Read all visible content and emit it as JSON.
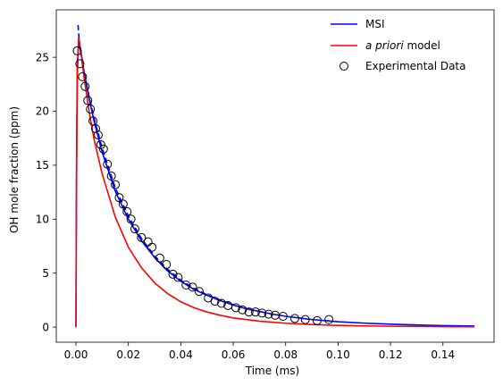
{
  "chart_data": {
    "type": "line",
    "xlabel": "Time (ms)",
    "ylabel": "OH mole fraction (ppm)",
    "xlim": [
      -0.0075,
      0.1595
    ],
    "ylim": [
      -1.4,
      29.4
    ],
    "x_ticks": [
      0.0,
      0.02,
      0.04,
      0.06,
      0.08,
      0.1,
      0.12,
      0.14
    ],
    "x_tick_labels": [
      "0.00",
      "0.02",
      "0.04",
      "0.06",
      "0.08",
      "0.10",
      "0.12",
      "0.14"
    ],
    "y_ticks": [
      0,
      5,
      10,
      15,
      20,
      25
    ],
    "y_tick_labels": [
      "0",
      "5",
      "10",
      "15",
      "20",
      "25"
    ],
    "grid": false,
    "legend_position": "top-right",
    "legend": {
      "msi": "MSI",
      "apriori_italic": "a priori",
      "apriori_rest": " model",
      "experimental": "Experimental Data"
    },
    "colors": {
      "msi": "#0000ff",
      "apriori": "#ff0000",
      "experimental_edge": "#000000",
      "axes": "#000000"
    },
    "series": [
      {
        "name": "MSI",
        "style": "solid",
        "x": [
          0.0,
          0.0002,
          0.0005,
          0.001,
          0.002,
          0.003,
          0.005,
          0.007,
          0.01,
          0.015,
          0.02,
          0.025,
          0.03,
          0.035,
          0.04,
          0.045,
          0.05,
          0.055,
          0.06,
          0.065,
          0.07,
          0.075,
          0.08,
          0.085,
          0.09,
          0.095,
          0.1,
          0.11,
          0.12,
          0.13,
          0.14,
          0.152
        ],
        "y": [
          0.0,
          14.0,
          24.0,
          26.3,
          25.4,
          23.8,
          21.2,
          19.0,
          16.2,
          12.6,
          10.0,
          8.0,
          6.45,
          5.2,
          4.25,
          3.5,
          2.95,
          2.45,
          2.05,
          1.7,
          1.45,
          1.2,
          1.0,
          0.85,
          0.7,
          0.6,
          0.5,
          0.37,
          0.27,
          0.2,
          0.14,
          0.1
        ]
      },
      {
        "name": "MSI",
        "style": "dashed",
        "x": [
          0.0008,
          0.001,
          0.0015,
          0.002,
          0.003,
          0.005,
          0.007,
          0.01,
          0.015,
          0.02,
          0.025,
          0.03,
          0.035,
          0.04,
          0.045,
          0.05,
          0.055,
          0.06
        ],
        "y": [
          28.0,
          27.3,
          26.0,
          25.1,
          23.7,
          21.4,
          19.3,
          16.6,
          12.9,
          10.3,
          8.2,
          6.6,
          5.35,
          4.35,
          3.6,
          3.0,
          2.5,
          2.1
        ]
      },
      {
        "name": "a priori model",
        "style": "solid",
        "x": [
          0.0,
          0.0002,
          0.0005,
          0.001,
          0.0015,
          0.002,
          0.003,
          0.005,
          0.007,
          0.01,
          0.015,
          0.02,
          0.025,
          0.03,
          0.035,
          0.04,
          0.045,
          0.05,
          0.055,
          0.06,
          0.07,
          0.08,
          0.09,
          0.1,
          0.11,
          0.12,
          0.13,
          0.14,
          0.152
        ],
        "y": [
          0.0,
          12.0,
          23.0,
          26.8,
          26.2,
          25.3,
          23.3,
          20.0,
          17.3,
          14.2,
          10.2,
          7.4,
          5.5,
          4.1,
          3.1,
          2.35,
          1.8,
          1.4,
          1.1,
          0.85,
          0.55,
          0.36,
          0.24,
          0.16,
          0.11,
          0.08,
          0.06,
          0.04,
          0.03
        ]
      },
      {
        "name": "Experimental Data",
        "style": "markers",
        "x": [
          0.0005,
          0.0015,
          0.0025,
          0.0035,
          0.0045,
          0.0055,
          0.0065,
          0.0075,
          0.0085,
          0.0095,
          0.0105,
          0.012,
          0.0135,
          0.015,
          0.0165,
          0.018,
          0.0195,
          0.021,
          0.0225,
          0.025,
          0.0275,
          0.029,
          0.032,
          0.0345,
          0.037,
          0.039,
          0.042,
          0.0445,
          0.047,
          0.0505,
          0.053,
          0.0555,
          0.058,
          0.061,
          0.0635,
          0.066,
          0.0685,
          0.071,
          0.0735,
          0.076,
          0.079,
          0.0835,
          0.0875,
          0.092,
          0.0965
        ],
        "y": [
          25.6,
          24.4,
          23.2,
          22.3,
          21.0,
          20.2,
          19.1,
          18.4,
          17.8,
          16.9,
          16.5,
          15.1,
          14.0,
          13.2,
          12.0,
          11.4,
          10.7,
          10.0,
          9.1,
          8.3,
          7.9,
          7.4,
          6.4,
          5.8,
          4.9,
          4.6,
          3.9,
          3.7,
          3.3,
          2.7,
          2.4,
          2.2,
          2.0,
          1.8,
          1.6,
          1.4,
          1.4,
          1.3,
          1.2,
          1.1,
          1.0,
          0.8,
          0.7,
          0.6,
          0.7
        ]
      }
    ]
  }
}
